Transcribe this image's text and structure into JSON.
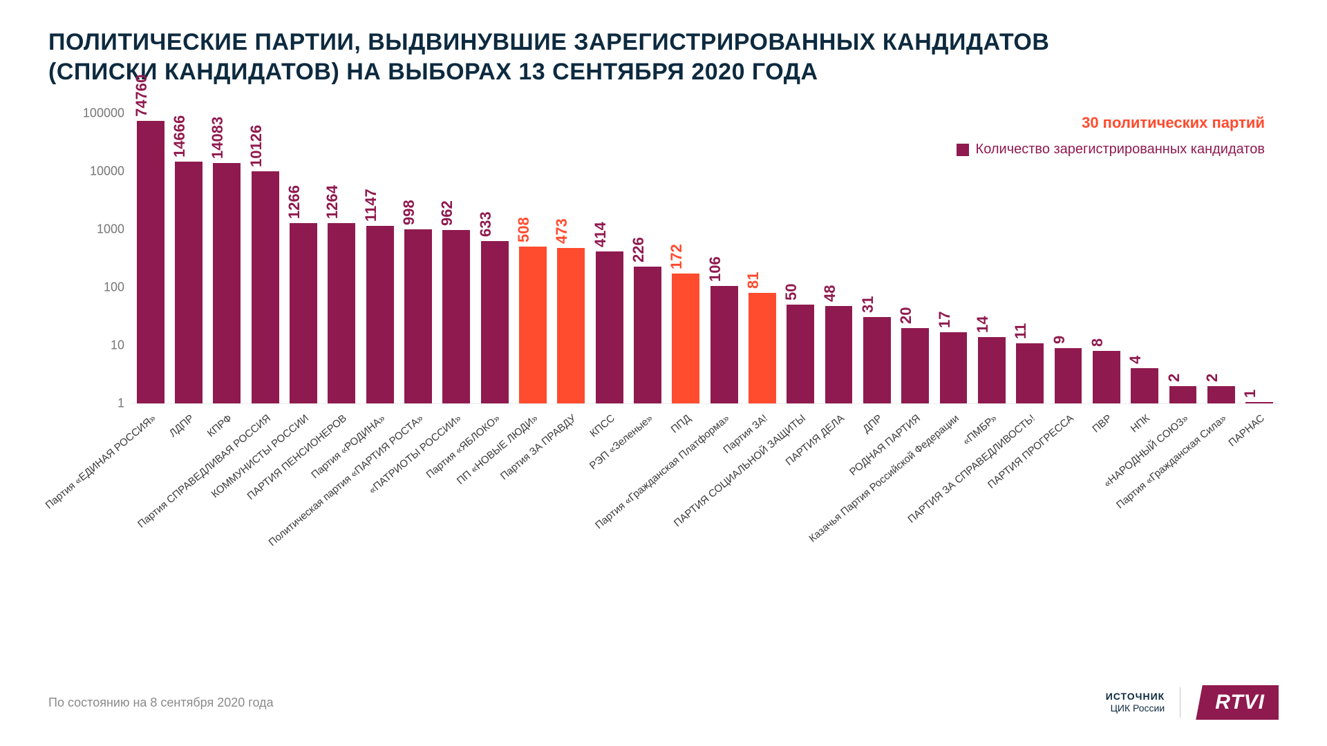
{
  "title_line1": "ПОЛИТИЧЕСКИЕ ПАРТИИ, ВЫДВИНУВШИЕ ЗАРЕГИСТРИРОВАННЫХ КАНДИДАТОВ",
  "title_line2": "(СПИСКИ КАНДИДАТОВ) НА ВЫБОРАХ 13 СЕНТЯБРЯ 2020 ГОДА",
  "legend": {
    "highlight": "30 политических партий",
    "series_label": "Количество зарегистрированных кандидатов"
  },
  "chart": {
    "type": "bar",
    "yscale": "log",
    "ylim": [
      1,
      100000
    ],
    "yticks": [
      1,
      10,
      100,
      1000,
      10000,
      100000
    ],
    "ytick_labels": [
      "1",
      "10",
      "100",
      "1000",
      "10000",
      "100000"
    ],
    "default_bar_color": "#8f1a4f",
    "highlight_bar_color": "#ff4b2e",
    "label_fontsize": 22,
    "xlabel_fontsize": 15,
    "tick_color": "#767676",
    "xlabel_color": "#3a3a3a",
    "background_color": "#ffffff",
    "bar_width": 0.72,
    "data": [
      {
        "name": "Партия «ЕДИНАЯ РОССИЯ»",
        "value": 74760,
        "highlight": false
      },
      {
        "name": "ЛДПР",
        "value": 14666,
        "highlight": false
      },
      {
        "name": "КПРФ",
        "value": 14083,
        "highlight": false
      },
      {
        "name": "Партия СПРАВЕДЛИВАЯ РОССИЯ",
        "value": 10126,
        "highlight": false
      },
      {
        "name": "КОММУНИСТЫ РОССИИ",
        "value": 1266,
        "highlight": false
      },
      {
        "name": "ПАРТИЯ ПЕНСИОНЕРОВ",
        "value": 1264,
        "highlight": false
      },
      {
        "name": "Партия «РОДИНА»",
        "value": 1147,
        "highlight": false
      },
      {
        "name": "Политическая партия «ПАРТИЯ РОСТА»",
        "value": 998,
        "highlight": false
      },
      {
        "name": "«ПАТРИОТЫ РОССИИ»",
        "value": 962,
        "highlight": false
      },
      {
        "name": "Партия «ЯБЛОКО»",
        "value": 633,
        "highlight": false
      },
      {
        "name": "ПП «НОВЫЕ ЛЮДИ»",
        "value": 508,
        "highlight": true
      },
      {
        "name": "Партия ЗА ПРАВДУ",
        "value": 473,
        "highlight": true
      },
      {
        "name": "КПСС",
        "value": 414,
        "highlight": false
      },
      {
        "name": "РЭП «Зеленые»",
        "value": 226,
        "highlight": false
      },
      {
        "name": "ППД",
        "value": 172,
        "highlight": true
      },
      {
        "name": "Партия «Гражданская Платформа»",
        "value": 106,
        "highlight": false
      },
      {
        "name": "Партия ЗА!",
        "value": 81,
        "highlight": true
      },
      {
        "name": "ПАРТИЯ СОЦИАЛЬНОЙ ЗАЩИТЫ",
        "value": 50,
        "highlight": false
      },
      {
        "name": "ПАРТИЯ ДЕЛА",
        "value": 48,
        "highlight": false
      },
      {
        "name": "ДПР",
        "value": 31,
        "highlight": false
      },
      {
        "name": "РОДНАЯ ПАРТИЯ",
        "value": 20,
        "highlight": false
      },
      {
        "name": "Казачья Партия Российской Федерации",
        "value": 17,
        "highlight": false
      },
      {
        "name": "«ПМБР»",
        "value": 14,
        "highlight": false
      },
      {
        "name": "ПАРТИЯ ЗА СПРАВЕДЛИВОСТЬ!",
        "value": 11,
        "highlight": false
      },
      {
        "name": "ПАРТИЯ ПРОГРЕССА",
        "value": 9,
        "highlight": false
      },
      {
        "name": "ПВР",
        "value": 8,
        "highlight": false
      },
      {
        "name": "НПК",
        "value": 4,
        "highlight": false
      },
      {
        "name": "«НАРОДНЫЙ СОЮЗ»",
        "value": 2,
        "highlight": false
      },
      {
        "name": "Партия «Гражданская Сила»",
        "value": 2,
        "highlight": false
      },
      {
        "name": "ПАРНАС",
        "value": 1,
        "highlight": false
      }
    ]
  },
  "footer": {
    "note": "По состоянию на 8 сентября 2020 года",
    "source_label": "ИСТОЧНИК",
    "source_name": "ЦИК России",
    "logo": "RTVI"
  }
}
